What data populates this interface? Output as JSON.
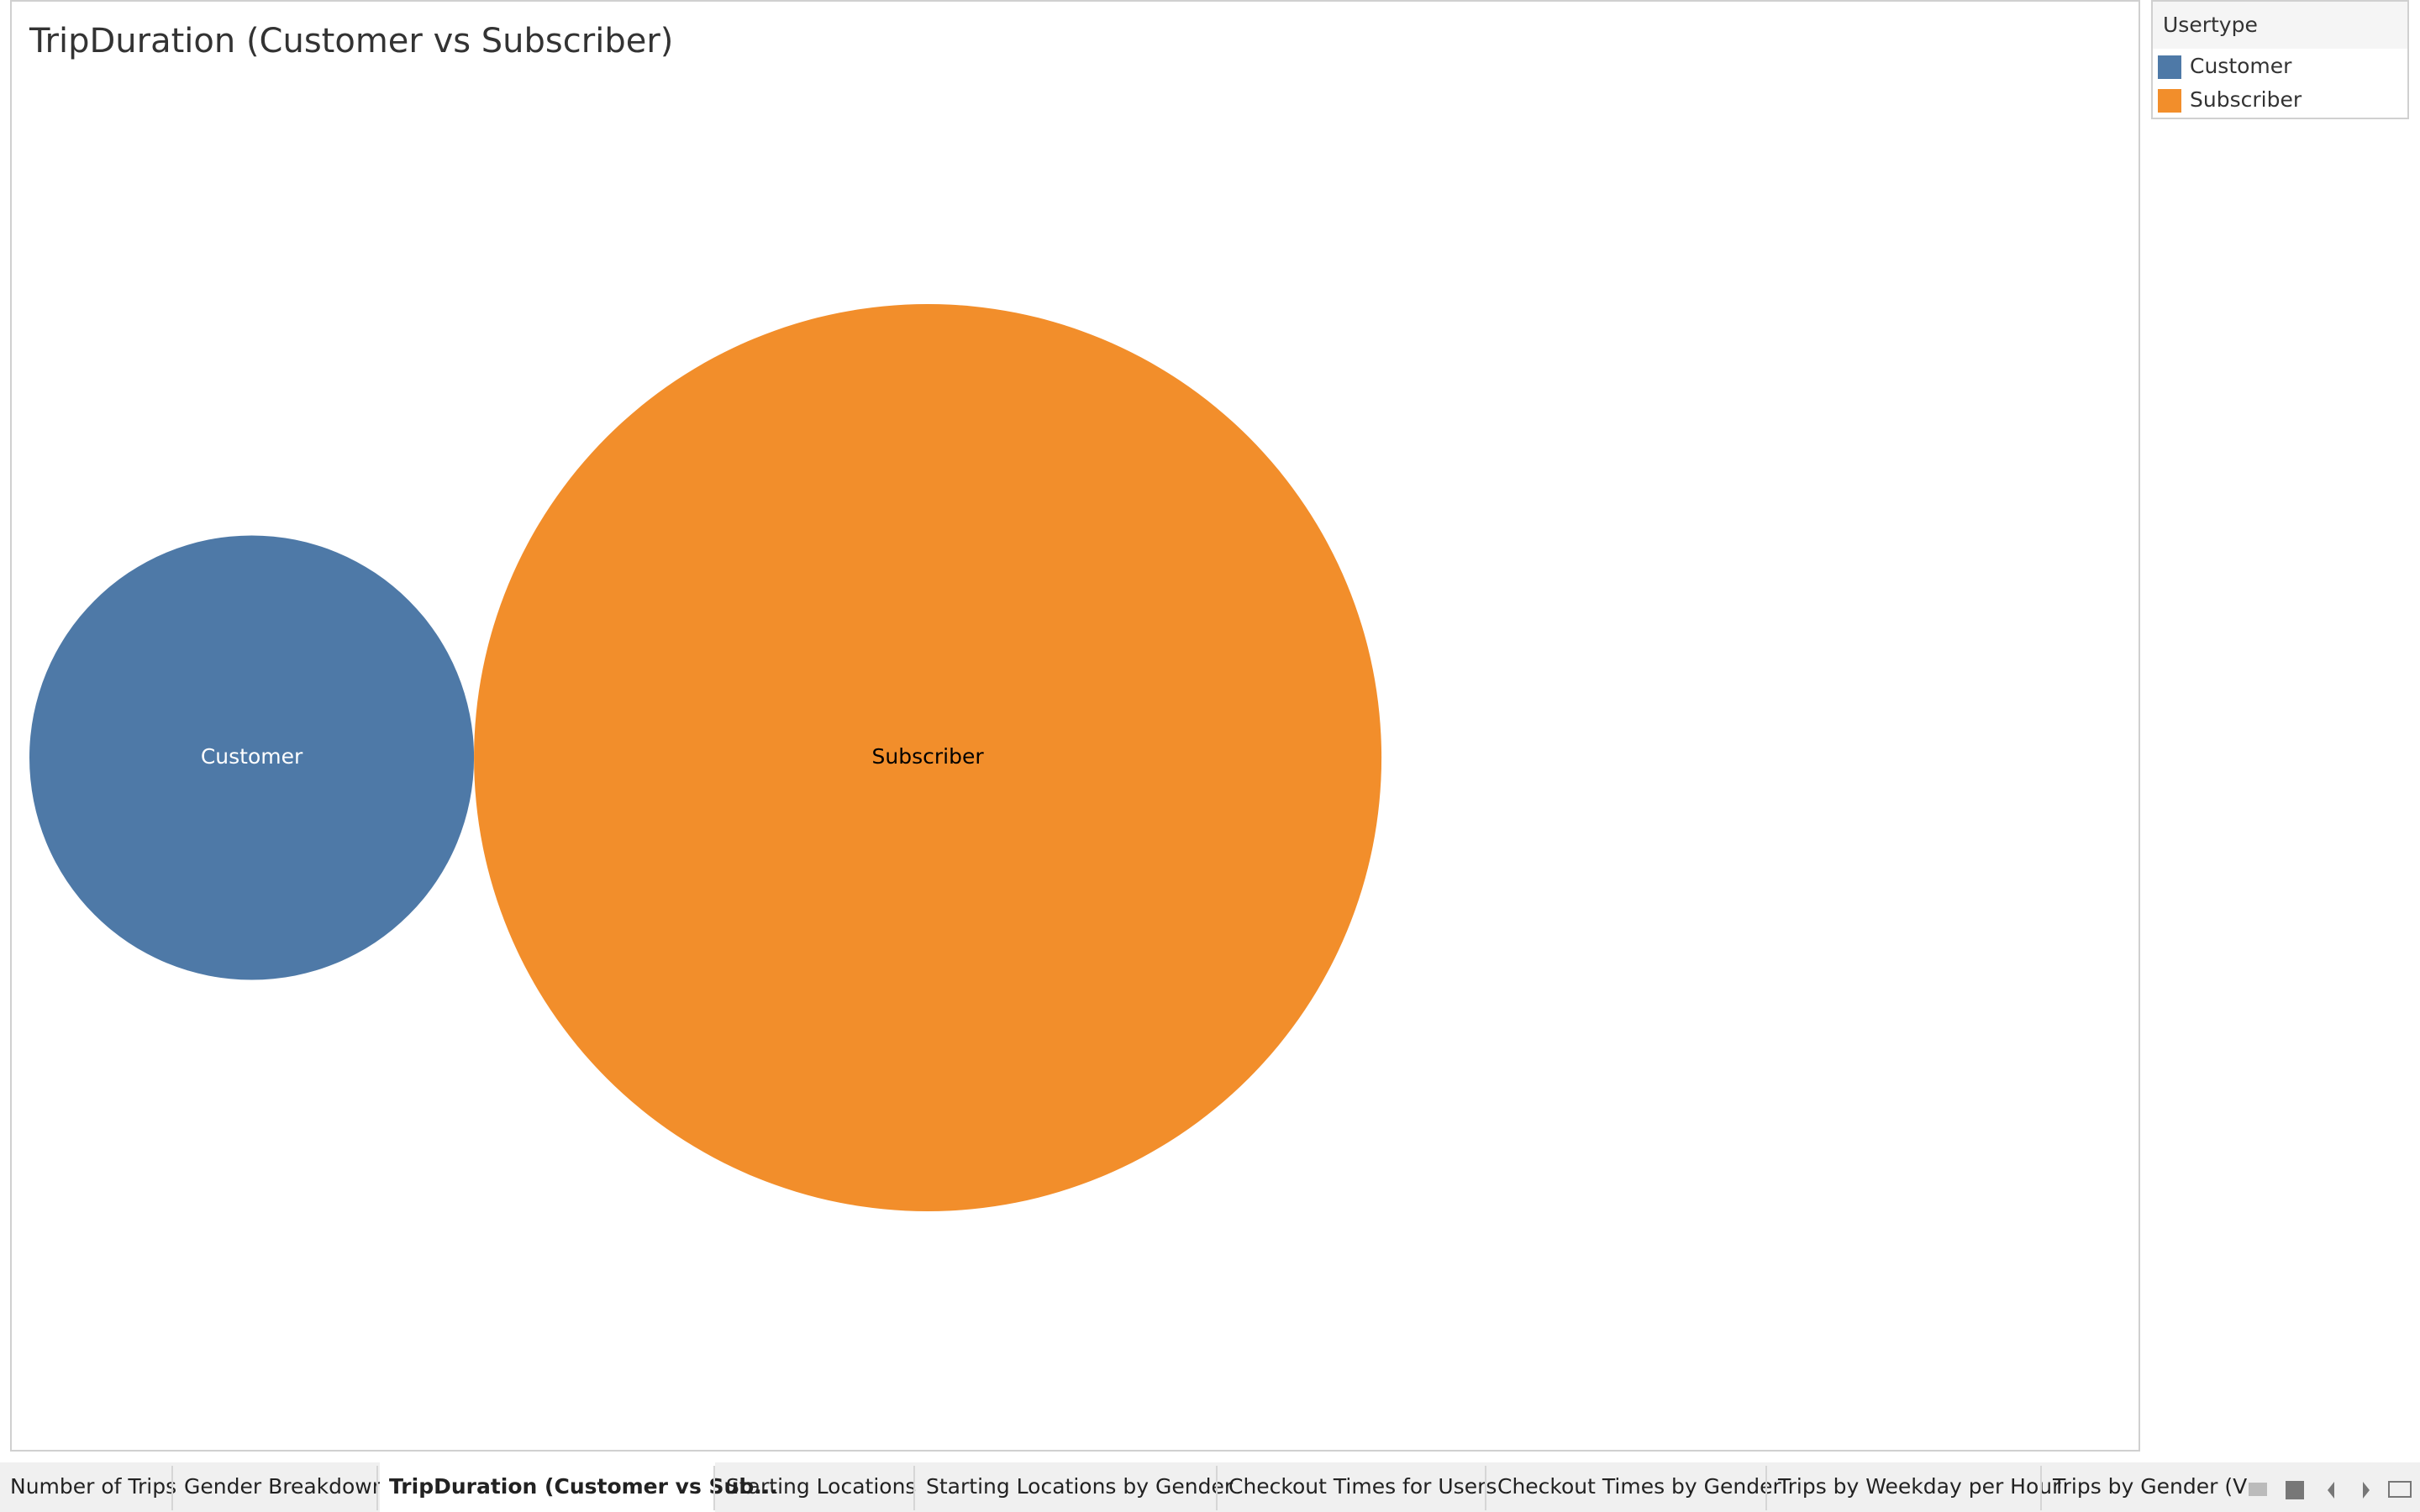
{
  "chart_data": {
    "type": "bubble",
    "title": "TripDuration (Customer vs Subscriber)",
    "legend_title": "Usertype",
    "categories": [
      "Customer",
      "Subscriber"
    ],
    "values": [
      24,
      100
    ],
    "colors": [
      "#4e79a7",
      "#f28e2b"
    ],
    "label_colors": [
      "#ffffff",
      "#000000"
    ]
  },
  "tabs": [
    "Number of Trips",
    "Gender Breakdown",
    "TripDuration (Customer vs Sub...",
    "Starting Locations",
    "Starting Locations by Gender",
    "Checkout Times for Users",
    "Checkout Times by Gender",
    "Trips by Weekday per Hour",
    "Trips by Gender (V"
  ],
  "active_tab": 2
}
